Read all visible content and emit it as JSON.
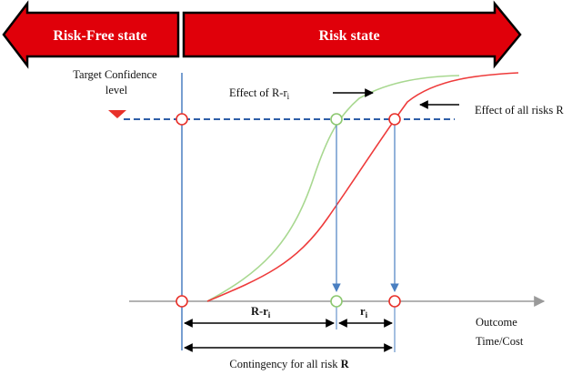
{
  "banners": {
    "risk_free": "Risk-Free state",
    "risk": "Risk state"
  },
  "labels": {
    "target_line1": "Target Confidence",
    "target_line2": "level",
    "effect_r_ri_prefix": "Effect of R-r",
    "effect_r_ri_sub": "i",
    "effect_all": "Effect of all risks R",
    "outcome_line1": "Outcome",
    "outcome_line2": "Time/Cost",
    "dim_r_ri_prefix": "R-r",
    "dim_r_ri_sub": "i",
    "dim_ri_prefix": "r",
    "dim_ri_sub": "i",
    "contingency_prefix": "Contingency for all risk ",
    "contingency_bold": "R"
  },
  "colors": {
    "banner_fill": "#e0000a",
    "green_curve": "#a8d890",
    "red_curve": "#ee3b3b",
    "blue_line": "#4a7fc1",
    "axis_gray": "#9a9a9a",
    "marker_red": "#e8312a"
  }
}
